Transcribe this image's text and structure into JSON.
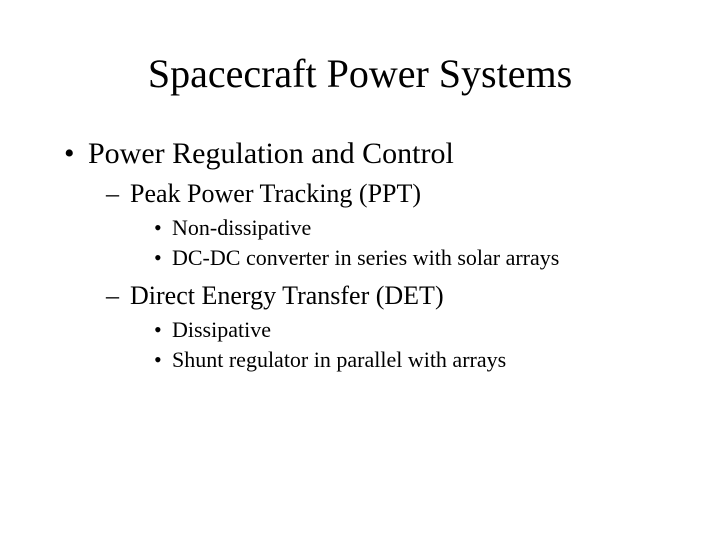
{
  "slide": {
    "background_color": "#ffffff",
    "text_color": "#000000",
    "font_family": "Times New Roman",
    "title": {
      "text": "Spacecraft Power Systems",
      "fontsize": 40,
      "align": "center"
    },
    "bullets": {
      "level1_fontsize": 30,
      "level2_fontsize": 26,
      "level3_fontsize": 22,
      "level1_marker": "•",
      "level2_marker": "–",
      "level3_marker": "•",
      "item0": {
        "text": "Power Regulation and Control",
        "sub0": {
          "text": "Peak Power Tracking (PPT)",
          "sub0": {
            "text": "Non-dissipative"
          },
          "sub1": {
            "text": "DC-DC converter in series with solar arrays"
          }
        },
        "sub1": {
          "text": "Direct Energy Transfer (DET)",
          "sub0": {
            "text": "Dissipative"
          },
          "sub1": {
            "text": "Shunt regulator in parallel with arrays"
          }
        }
      }
    }
  }
}
